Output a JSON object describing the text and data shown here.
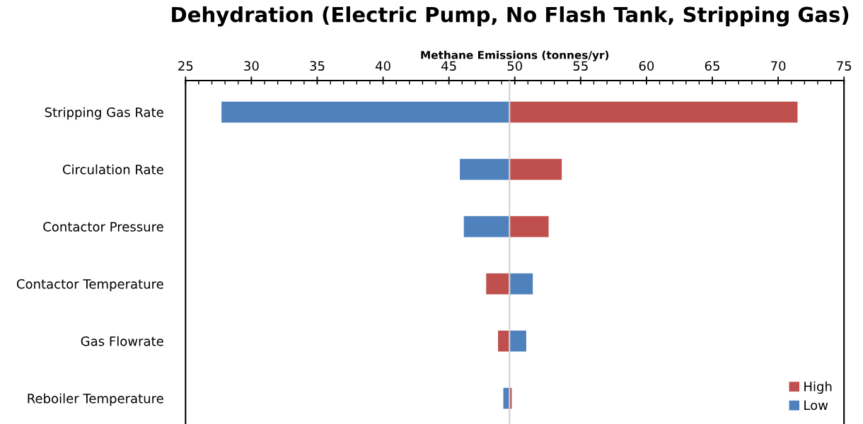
{
  "chart_data": {
    "type": "bar",
    "orientation": "horizontal",
    "title": "Dehydration (Electric Pump, No Flash Tank, Stripping Gas)",
    "xlabel": "Methane Emissions (tonnes/yr)",
    "categories": [
      "Stripping Gas Rate",
      "Circulation Rate",
      "Contactor Pressure",
      "Contactor Temperature",
      "Gas Flowrate",
      "Reboiler Temperature"
    ],
    "series": [
      {
        "name": "High",
        "color": "#c0504d",
        "base": [
          49.6,
          49.6,
          49.6,
          47.8,
          48.7,
          49.6
        ],
        "values": [
          21.9,
          4.0,
          3.0,
          1.8,
          0.9,
          0.2
        ]
      },
      {
        "name": "Low",
        "color": "#4f81bd",
        "base": [
          27.7,
          45.8,
          46.1,
          49.6,
          49.6,
          49.1
        ],
        "values": [
          21.9,
          3.8,
          3.5,
          1.8,
          1.3,
          0.5
        ]
      }
    ],
    "xlim": [
      25,
      75
    ],
    "xticks": [
      25,
      30,
      35,
      40,
      45,
      50,
      55,
      60,
      65,
      70,
      75
    ],
    "ref_lines": [
      {
        "axis": "x",
        "value": 49.6,
        "color": "#d0d0d0"
      }
    ],
    "legend": "bottom right",
    "grid": false
  }
}
